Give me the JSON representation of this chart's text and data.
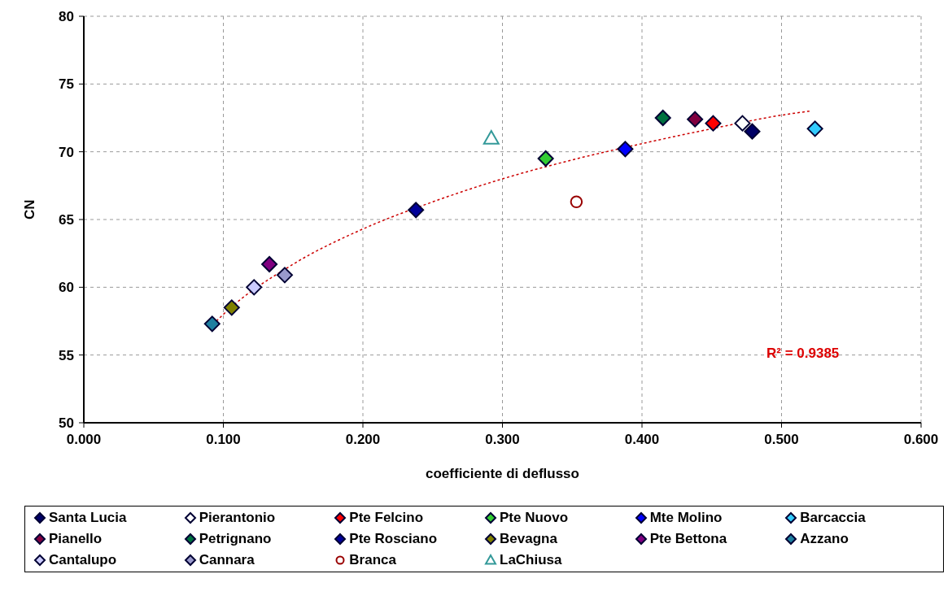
{
  "chart_data": {
    "type": "scatter",
    "xlabel": "coefficiente di deflusso",
    "ylabel": "CN",
    "xlim": [
      0,
      0.6
    ],
    "xticks": [
      {
        "value": 0,
        "label": "0.000"
      },
      {
        "value": 0.1,
        "label": "0.100"
      },
      {
        "value": 0.2,
        "label": "0.200"
      },
      {
        "value": 0.3,
        "label": "0.300"
      },
      {
        "value": 0.4,
        "label": "0.400"
      },
      {
        "value": 0.5,
        "label": "0.500"
      },
      {
        "value": 0.6,
        "label": "0.600"
      }
    ],
    "ylim": [
      50,
      80
    ],
    "yticks": [
      50,
      55,
      60,
      65,
      70,
      75,
      80
    ],
    "grid": true,
    "legend": "bottom",
    "marker": "diamond",
    "annotations": [
      "R² = 0.9385"
    ],
    "series": [
      {
        "name": "Santa Lucia",
        "color": "#000066",
        "x": [
          0.479
        ],
        "values": [
          71.5
        ]
      },
      {
        "name": "Pierantonio",
        "color": "#ffffff",
        "x": [
          0.472
        ],
        "values": [
          72.1
        ]
      },
      {
        "name": "Pte Felcino",
        "color": "#ff0000",
        "x": [
          0.451
        ],
        "values": [
          72.1
        ]
      },
      {
        "name": "Pte Nuovo",
        "color": "#33cc33",
        "x": [
          0.331
        ],
        "values": [
          69.5
        ]
      },
      {
        "name": "Mte Molino",
        "color": "#0000ff",
        "x": [
          0.388
        ],
        "values": [
          70.2
        ]
      },
      {
        "name": "Barcaccia",
        "color": "#33ccff",
        "x": [
          0.524
        ],
        "values": [
          71.7
        ]
      },
      {
        "name": "Pianello",
        "color": "#800040",
        "x": [
          0.438
        ],
        "values": [
          72.4
        ]
      },
      {
        "name": "Petrignano",
        "color": "#007040",
        "x": [
          0.415
        ],
        "values": [
          72.5
        ]
      },
      {
        "name": "Pte Rosciano",
        "color": "#000099",
        "x": [
          0.238
        ],
        "values": [
          65.7
        ]
      },
      {
        "name": "Bevagna",
        "color": "#808000",
        "x": [
          0.106
        ],
        "values": [
          58.5
        ]
      },
      {
        "name": "Pte Bettona",
        "color": "#800080",
        "x": [
          0.133
        ],
        "values": [
          61.7
        ]
      },
      {
        "name": "Azzano",
        "color": "#1f7fa0",
        "x": [
          0.092
        ],
        "values": [
          57.3
        ]
      },
      {
        "name": "Cantalupo",
        "color": "#ccccff",
        "x": [
          0.122
        ],
        "values": [
          60.0
        ]
      },
      {
        "name": "Cannara",
        "color": "#9999cc",
        "x": [
          0.144
        ],
        "values": [
          60.9
        ]
      },
      {
        "name": "Branca",
        "color": "#990000",
        "marker": "circle",
        "x": [
          0.353
        ],
        "values": [
          66.3
        ]
      },
      {
        "name": "LaChiusa",
        "color": "#339999",
        "marker": "triangle",
        "x": [
          0.292
        ],
        "values": [
          71.0
        ]
      },
      {
        "type": "line",
        "color": "#cc0000",
        "marker": "none",
        "line_style": "dotted",
        "x": [
          0.095,
          0.1,
          0.15,
          0.2,
          0.25,
          0.3,
          0.35,
          0.4,
          0.45,
          0.5,
          0.52
        ],
        "values": [
          57.5,
          58.0,
          61.7,
          64.3,
          66.3,
          68.0,
          69.4,
          70.6,
          71.7,
          72.7,
          73.0
        ]
      }
    ]
  }
}
